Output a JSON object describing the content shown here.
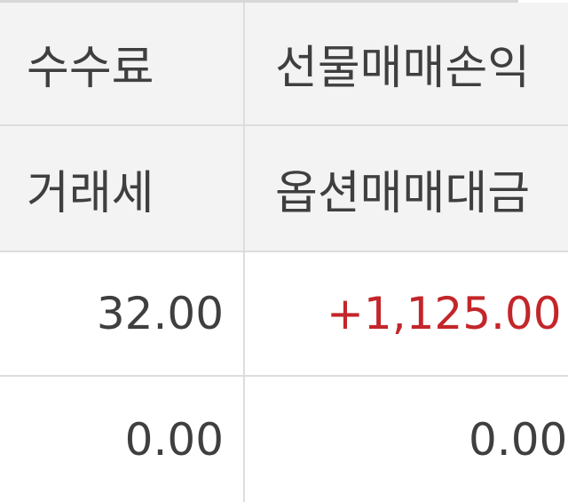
{
  "table": {
    "headers_row1": [
      "수수료",
      "선물매매손익"
    ],
    "headers_row2": [
      "거래세",
      "옵션매매대금"
    ],
    "values_row1": [
      "32.00",
      "+1,125.00"
    ],
    "values_row2": [
      "0.00",
      "0.00"
    ]
  },
  "colors": {
    "header_bg": "#f3f3f3",
    "text": "#3f3f3f",
    "positive": "#c3262a",
    "border": "#dddddd"
  }
}
